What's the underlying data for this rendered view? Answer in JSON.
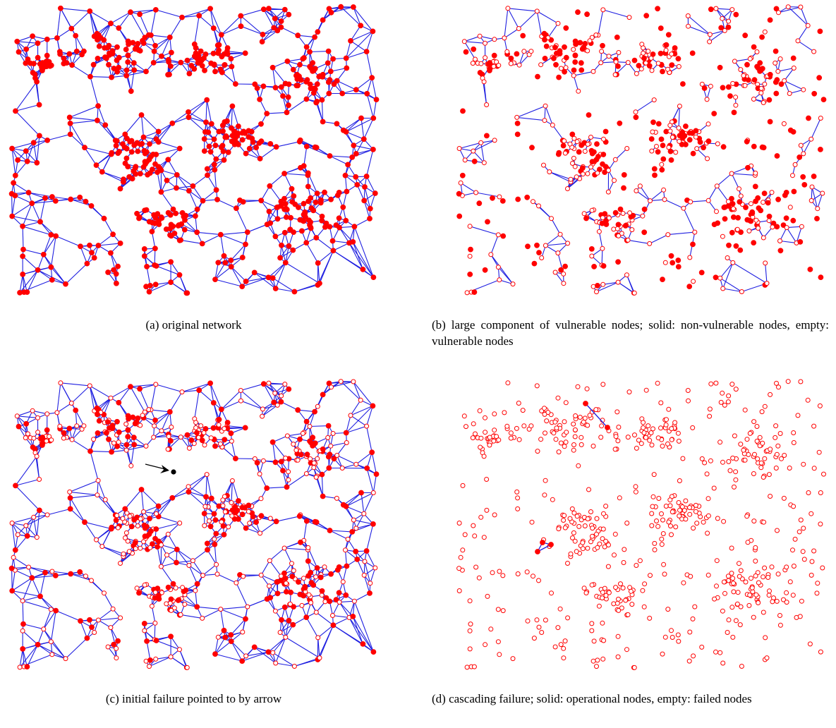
{
  "figure": {
    "panels": [
      {
        "id": "a",
        "caption": "(a) original network",
        "node_style": "solid"
      },
      {
        "id": "b",
        "caption": "(b) large component of vulnerable nodes; solid: non-vulnerable nodes, empty: vulnerable nodes",
        "node_style": "mixed"
      },
      {
        "id": "c",
        "caption": "(c) initial failure pointed to by arrow",
        "node_style": "mixed"
      },
      {
        "id": "d",
        "caption": "(d) cascading failure; solid: operational nodes, empty: failed nodes",
        "node_style": "empty"
      }
    ],
    "colors": {
      "edge": "#1f1fe0",
      "node": "#ff0000",
      "arrow": "#000000"
    }
  }
}
